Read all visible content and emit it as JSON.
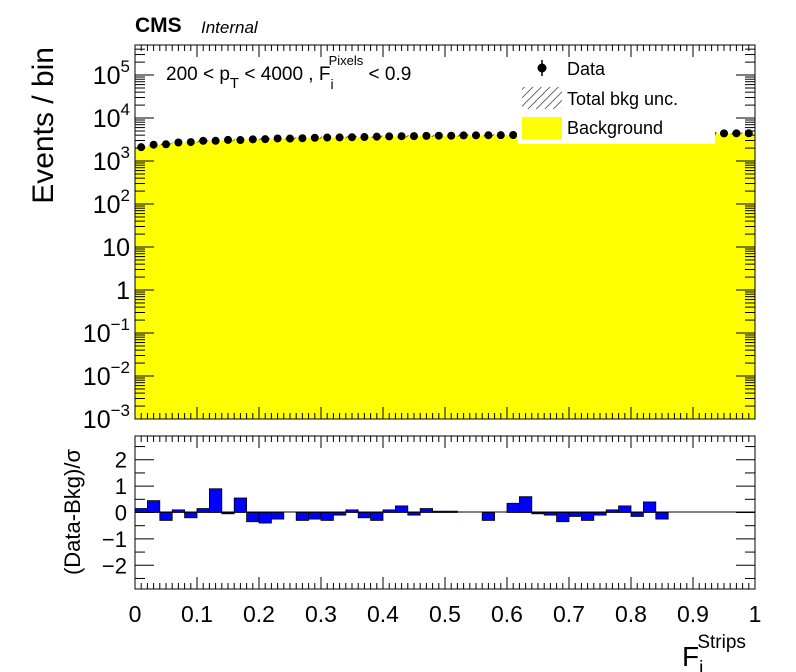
{
  "header": {
    "experiment": "CMS",
    "status": "Internal"
  },
  "selection": {
    "pre": "200 < p",
    "pt_sub": "T",
    "mid": " < 4000 , F",
    "f_sup": "Pixels",
    "f_sub": "i",
    "post": " < 0.9"
  },
  "legend": {
    "placement": "top-right",
    "entries": [
      {
        "label": "Data",
        "style": "marker"
      },
      {
        "label": "Total bkg unc.",
        "style": "hatch"
      },
      {
        "label": "Background",
        "style": "fill"
      }
    ]
  },
  "colors": {
    "background_fill": "#ffff00",
    "pull_fill": "#0000ff",
    "data_marker": "#000000"
  },
  "chart_data": [
    {
      "type": "bar",
      "panel": "main",
      "ylabel": "Events / bin",
      "yscale": "log",
      "ylim": [
        0.001,
        500000
      ],
      "xlim": [
        0,
        1
      ],
      "y_ticks": [
        {
          "v": 100000,
          "base": "10",
          "exp": "5"
        },
        {
          "v": 10000,
          "base": "10",
          "exp": "4"
        },
        {
          "v": 1000,
          "base": "10",
          "exp": "3"
        },
        {
          "v": 100,
          "base": "10",
          "exp": "2"
        },
        {
          "v": 10,
          "base": "10",
          "exp": ""
        },
        {
          "v": 1,
          "base": "1",
          "exp": ""
        },
        {
          "v": 0.1,
          "base": "10",
          "exp": "−1"
        },
        {
          "v": 0.01,
          "base": "10",
          "exp": "−2"
        },
        {
          "v": 0.001,
          "base": "10",
          "exp": "−3"
        }
      ],
      "bin_width": 0.02,
      "background": [
        2150,
        2350,
        2500,
        2650,
        2780,
        2880,
        2970,
        3050,
        3120,
        3190,
        3250,
        3310,
        3360,
        3410,
        3460,
        3510,
        3560,
        3600,
        3640,
        3680,
        3720,
        3760,
        3800,
        3840,
        3870,
        3900,
        3930,
        3960,
        3990,
        4010,
        4040,
        4060,
        4080,
        4100,
        4120,
        4140,
        4160,
        4180,
        4200,
        4220,
        4240,
        4260,
        4280,
        4300,
        4320,
        4340,
        4360,
        4380,
        4400,
        4420
      ],
      "data": [
        2100,
        2400,
        2450,
        2700,
        2760,
        2950,
        2960,
        3100,
        3080,
        3200,
        3230,
        3350,
        3340,
        3400,
        3470,
        3520,
        3540,
        3580,
        3620,
        3690,
        3740,
        3780,
        3800,
        3850,
        3880,
        3880,
        3940,
        3960,
        3990,
        4000,
        4030,
        4070,
        4080,
        4110,
        4130,
        4160,
        4170,
        4200,
        4190,
        4230,
        4250,
        4290,
        4300,
        4310,
        4330,
        4350,
        4390,
        4400,
        4410,
        4430
      ]
    },
    {
      "type": "bar",
      "panel": "ratio",
      "ylabel": "(Data-Bkg)/σ",
      "xlabel_base": "F",
      "xlabel_sup": "Strips",
      "xlabel_sub": "i",
      "ylim": [
        -2.9,
        2.9
      ],
      "xlim": [
        0,
        1
      ],
      "x_ticks": [
        "0",
        "0.1",
        "0.2",
        "0.3",
        "0.4",
        "0.5",
        "0.6",
        "0.7",
        "0.8",
        "0.9",
        "1"
      ],
      "y_ticks": [
        "2",
        "1",
        "0",
        "−1",
        "−2"
      ],
      "bin_width": 0.02,
      "values": [
        0.15,
        0.45,
        -0.3,
        0.1,
        -0.2,
        0.15,
        0.9,
        -0.05,
        0.55,
        -0.35,
        -0.4,
        -0.25,
        0.0,
        -0.3,
        -0.25,
        -0.3,
        -0.1,
        0.1,
        -0.2,
        -0.3,
        0.1,
        0.25,
        -0.1,
        0.15,
        0.05,
        0.05,
        0.0,
        0.0,
        -0.3,
        0.0,
        0.35,
        0.6,
        -0.05,
        -0.1,
        -0.35,
        -0.15,
        -0.3,
        -0.1,
        0.1,
        0.25,
        -0.15,
        0.4,
        -0.25,
        0,
        0,
        0,
        0,
        0,
        0,
        0
      ]
    }
  ]
}
